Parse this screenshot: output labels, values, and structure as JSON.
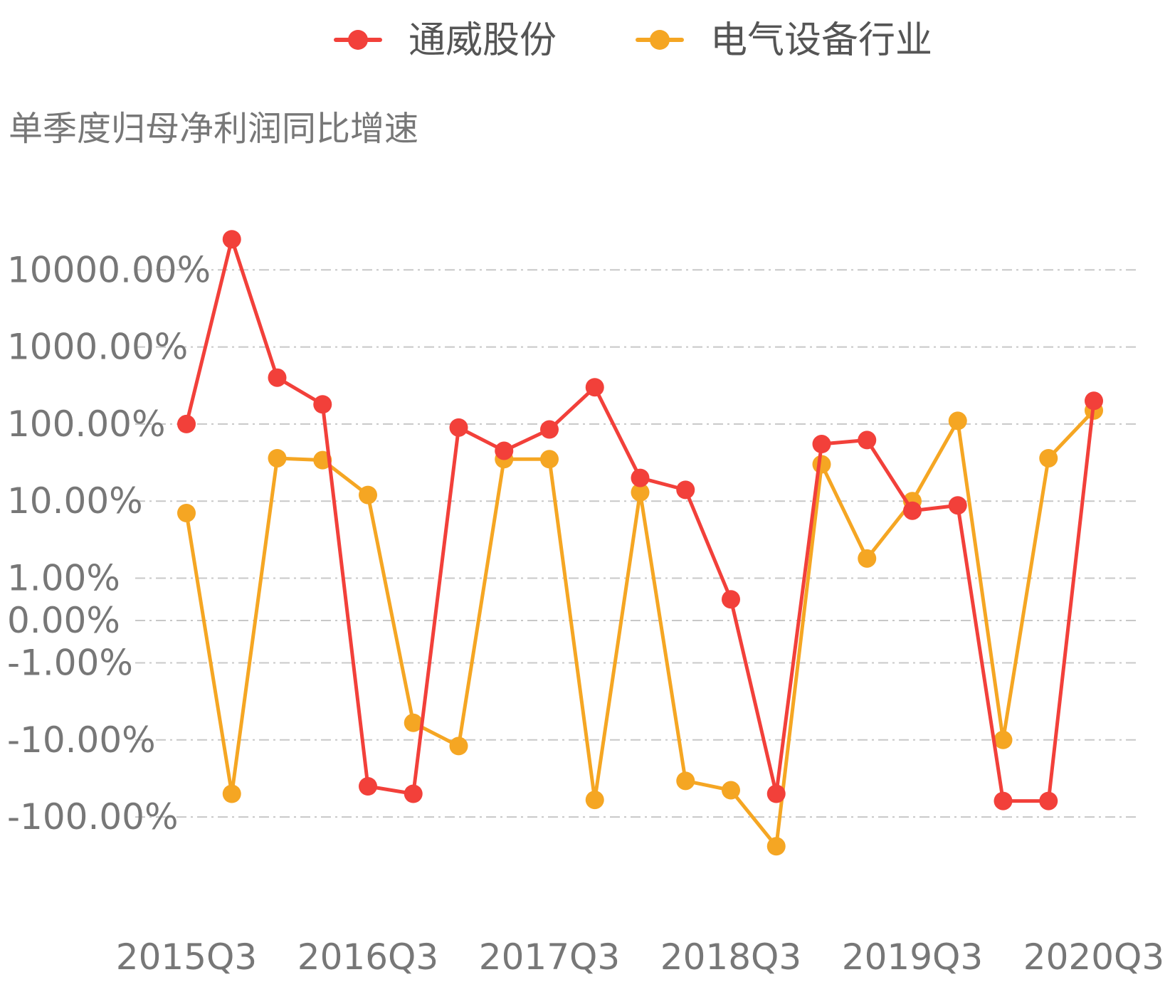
{
  "chart_data": {
    "type": "line",
    "ylabel": "单季度归母净利润同比增速",
    "y_scale": "symlog",
    "y_ticks": [
      {
        "value": 10000,
        "label": "10000.00%"
      },
      {
        "value": 1000,
        "label": "1000.00%"
      },
      {
        "value": 100,
        "label": "100.00%"
      },
      {
        "value": 10,
        "label": "10.00%"
      },
      {
        "value": 1,
        "label": "1.00%"
      },
      {
        "value": 0,
        "label": "0.00%"
      },
      {
        "value": -1,
        "label": "-1.00%"
      },
      {
        "value": -10,
        "label": "-10.00%"
      },
      {
        "value": -100,
        "label": "-100.00%"
      }
    ],
    "x": [
      "2015Q3",
      "2015Q4",
      "2016Q1",
      "2016Q2",
      "2016Q3",
      "2016Q4",
      "2017Q1",
      "2017Q2",
      "2017Q3",
      "2017Q4",
      "2018Q1",
      "2018Q2",
      "2018Q3",
      "2018Q4",
      "2019Q1",
      "2019Q2",
      "2019Q3",
      "2019Q4",
      "2020Q1",
      "2020Q2",
      "2020Q3"
    ],
    "x_tick_labels": [
      "2015Q3",
      "2016Q3",
      "2017Q3",
      "2018Q3",
      "2019Q3",
      "2020Q3"
    ],
    "legend_position": "top",
    "grid": true,
    "series": [
      {
        "name": "通威股份",
        "color": "#f2403a",
        "values": [
          100,
          25000,
          400,
          180,
          -40,
          -50,
          90,
          45,
          85,
          300,
          20,
          14,
          0.5,
          -50,
          55,
          62,
          7.5,
          8.8,
          -62,
          -62,
          200
        ]
      },
      {
        "name": "电气设备行业",
        "color": "#f5a623",
        "values": [
          7.0,
          -50,
          36,
          34,
          12,
          -6,
          -12,
          35,
          35,
          -60,
          13,
          -34,
          -45,
          -240,
          30,
          1.8,
          10,
          110,
          -10,
          36,
          150
        ]
      }
    ]
  }
}
